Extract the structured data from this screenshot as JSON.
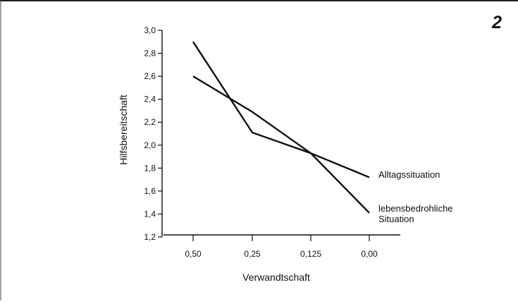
{
  "panel_number": "2",
  "chart_data": {
    "type": "line",
    "title": "",
    "xlabel": "Verwandtschaft",
    "ylabel": "Hilfsbereitschaft",
    "categories": [
      "0,50",
      "0,25",
      "0,125",
      "0,00"
    ],
    "ylim": [
      1.2,
      3.0
    ],
    "yticks": [
      "1,2",
      "1,4",
      "1,6",
      "1,8",
      "2,0",
      "2,2",
      "2,4",
      "2,6",
      "2,8",
      "3,0"
    ],
    "grid": false,
    "legend": "none",
    "series": [
      {
        "name": "Alltagssituation",
        "values": [
          2.6,
          2.29,
          1.93,
          1.72
        ]
      },
      {
        "name": "lebensbedrohliche Situation",
        "values": [
          2.9,
          2.11,
          1.93,
          1.41
        ]
      }
    ]
  }
}
